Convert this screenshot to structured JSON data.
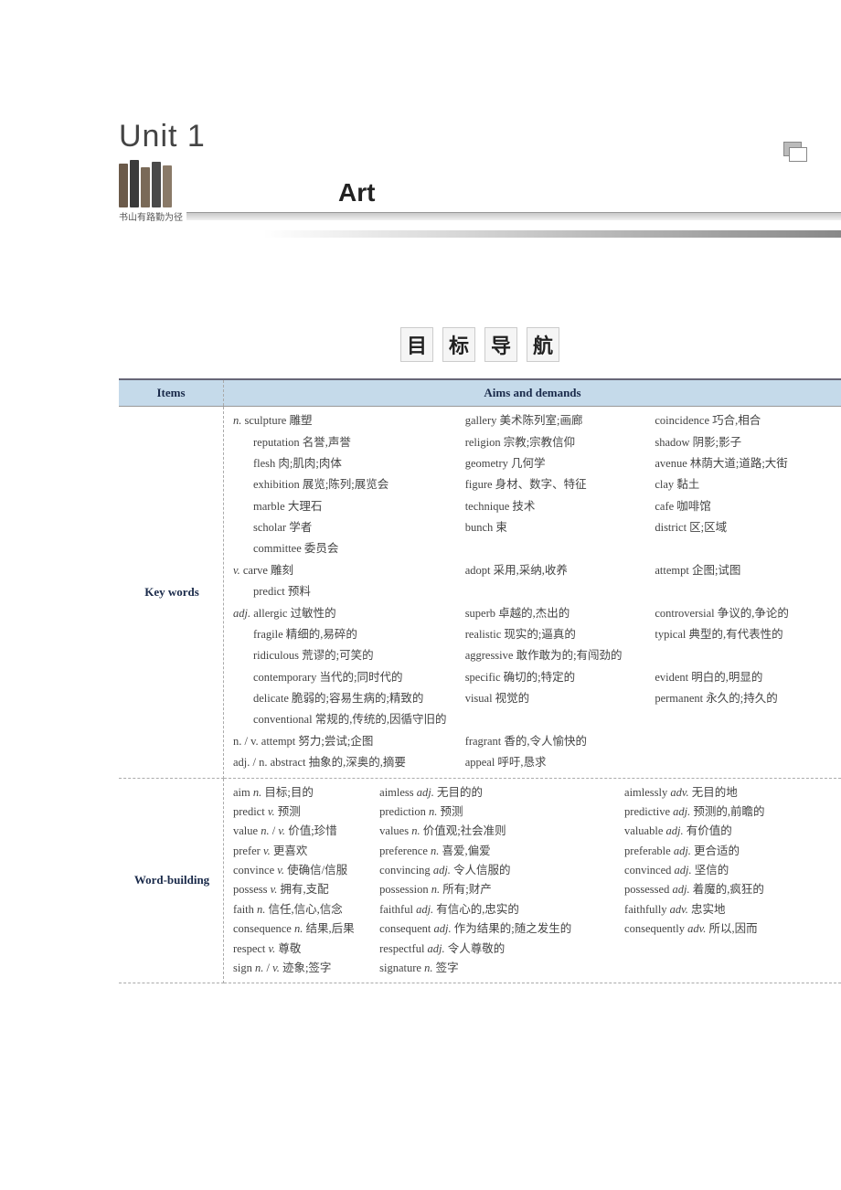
{
  "unit_label": "Unit 1",
  "title": "Art",
  "books_caption": "书山有路勤为径",
  "section_heading": [
    "目",
    "标",
    "导",
    "航"
  ],
  "table": {
    "header": {
      "items": "Items",
      "aims": "Aims and demands"
    },
    "rows": {
      "key_words": {
        "label": "Key words",
        "n_marker": "n.",
        "n": [
          [
            "sculpture 雕塑",
            "gallery 美术陈列室;画廊",
            "coincidence 巧合,相合"
          ],
          [
            "reputation 名誉,声誉",
            "religion 宗教;宗教信仰",
            "shadow 阴影;影子"
          ],
          [
            "flesh 肉;肌肉;肉体",
            "geometry 几何学",
            "avenue 林荫大道;道路;大街"
          ],
          [
            "exhibition 展览;陈列;展览会",
            "figure 身材、数字、特征",
            "clay 黏土"
          ],
          [
            "marble 大理石",
            "technique 技术",
            "cafe 咖啡馆"
          ],
          [
            "scholar 学者",
            "bunch 束",
            "district 区;区域"
          ],
          [
            "committee 委员会",
            "",
            ""
          ]
        ],
        "v_marker": "v.",
        "v": [
          [
            "carve 雕刻",
            "adopt 采用,采纳,收养",
            "attempt 企图;试图"
          ]
        ],
        "v_extra_indent": "predict 预料",
        "adj_marker": "adj.",
        "adj": [
          [
            "allergic 过敏性的",
            "superb 卓越的,杰出的",
            "controversial 争议的,争论的"
          ],
          [
            "fragile 精细的,易碎的",
            "realistic 现实的;逼真的",
            "typical 典型的,有代表性的"
          ]
        ],
        "adj_full": [
          [
            "ridiculous 荒谬的;可笑的",
            "aggressive 敢作敢为的;有闯劲的",
            ""
          ],
          [
            "contemporary 当代的;同时代的",
            "specific 确切的;特定的",
            "evident 明白的,明显的"
          ],
          [
            "delicate 脆弱的;容易生病的;精致的",
            "visual 视觉的",
            "permanent 永久的;持久的"
          ]
        ],
        "adj_span": "conventional 常规的,传统的,因循守旧的",
        "nv": [
          [
            "n. / v. attempt 努力;尝试;企图",
            "fragrant 香的,令人愉快的",
            ""
          ],
          [
            "adj. / n. abstract 抽象的,深奥的,摘要",
            "appeal 呼吁,恳求",
            ""
          ]
        ]
      },
      "word_building": {
        "label": "Word-building",
        "entries": [
          [
            "aim n. 目标;目的",
            "aimless adj. 无目的的",
            "aimlessly adv. 无目的地"
          ],
          [
            "predict v. 预测",
            "prediction n. 预测",
            "predictive adj. 预测的,前瞻的"
          ],
          [
            "value n. / v. 价值;珍惜",
            "values n. 价值观;社会准则",
            "valuable adj. 有价值的"
          ],
          [
            "prefer v. 更喜欢",
            "preference n. 喜爱,偏爱",
            "preferable adj. 更合适的"
          ],
          [
            "convince v. 使确信/信服",
            "convincing adj. 令人信服的",
            "convinced adj. 坚信的"
          ],
          [
            "possess v. 拥有,支配",
            "possession n. 所有;财产",
            "possessed adj. 着魔的,疯狂的"
          ],
          [
            "faith n. 信任,信心,信念",
            "faithful adj. 有信心的,忠实的",
            "faithfully adv. 忠实地"
          ],
          [
            "consequence n. 结果,后果",
            "consequent adj. 作为结果的;随之发生的",
            "consequently adv. 所以,因而"
          ],
          [
            "respect v. 尊敬",
            "respectful adj. 令人尊敬的",
            ""
          ],
          [
            "sign n. / v. 迹象;签字",
            "signature n. 签字",
            ""
          ]
        ]
      }
    }
  }
}
